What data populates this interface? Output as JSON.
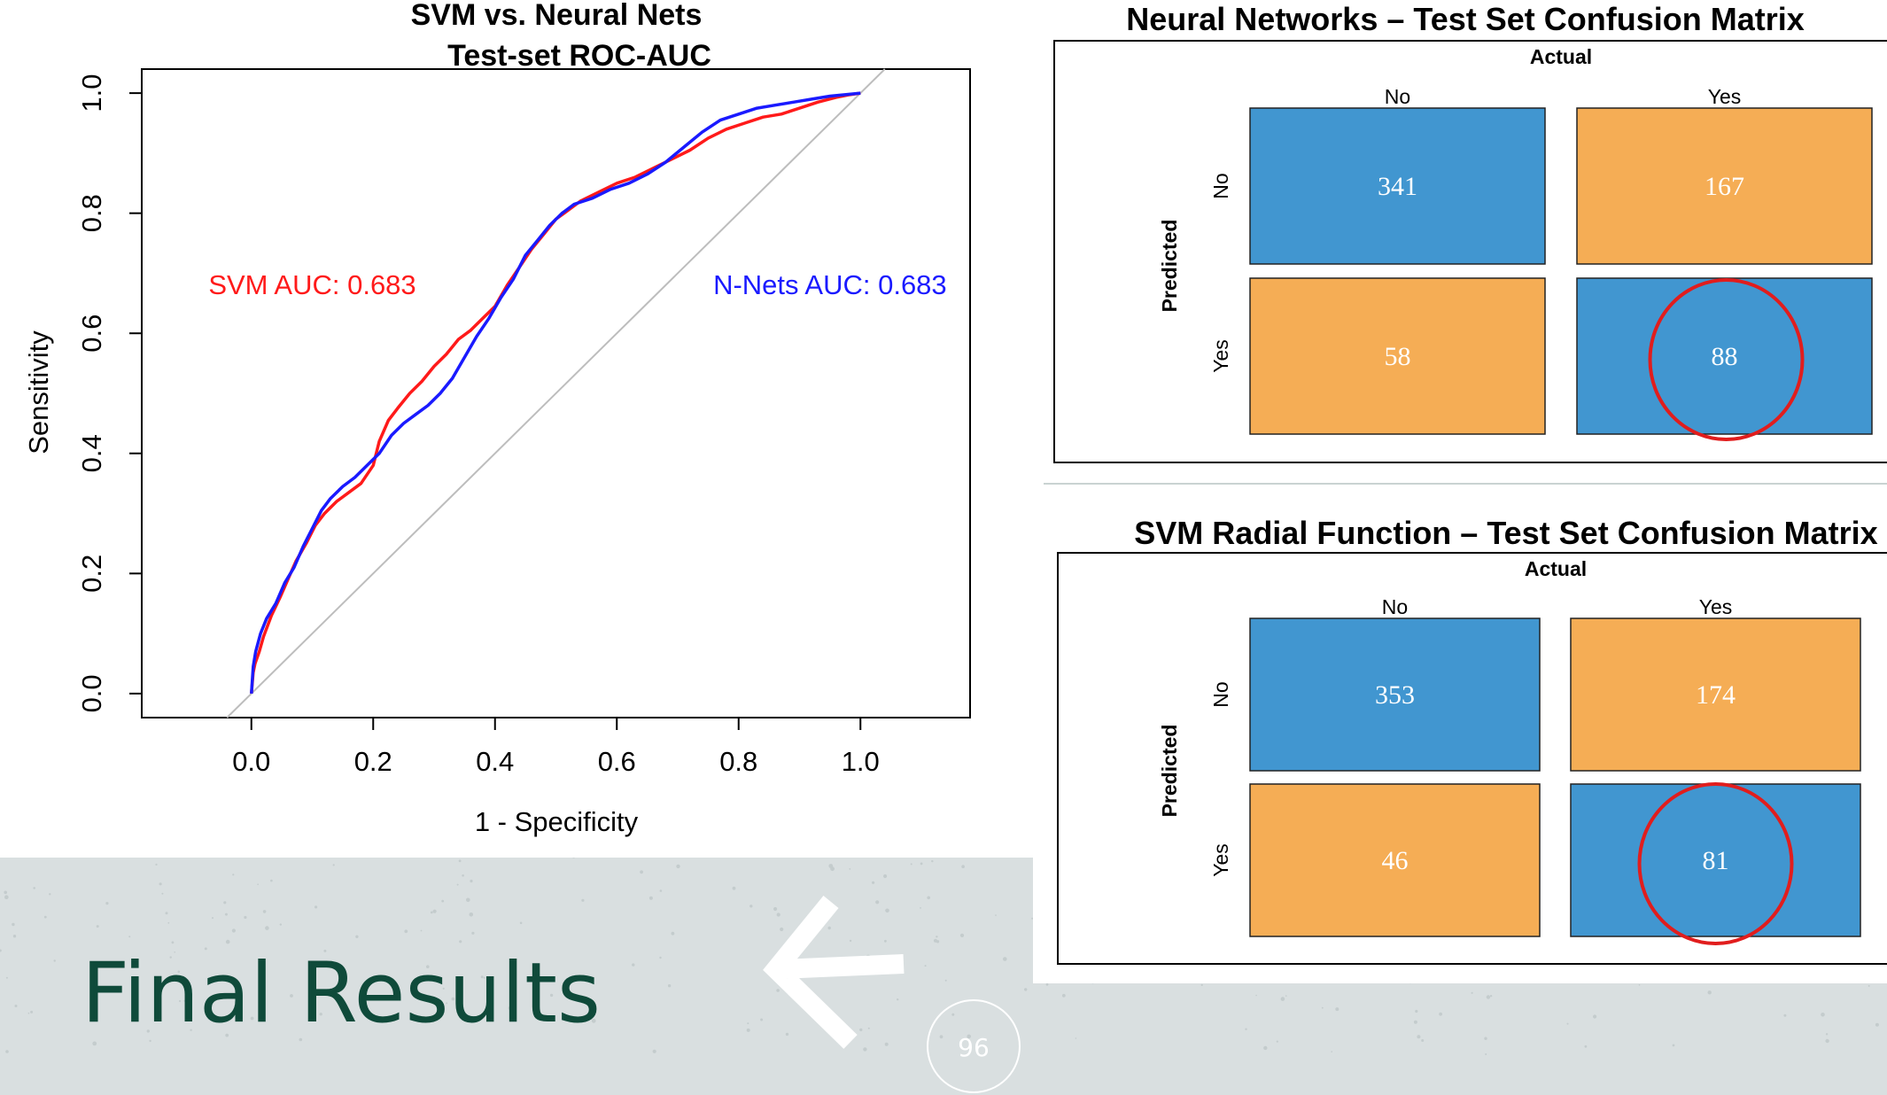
{
  "slide": {
    "title": "Final Results",
    "page_number": "96"
  },
  "chart_data": [
    {
      "type": "line",
      "title": "SVM vs. Neural Nets",
      "subtitle": "Test-set ROC-AUC",
      "xlabel": "1 - Specificity",
      "ylabel": "Sensitivity",
      "xlim": [
        -0.18,
        1.18
      ],
      "ylim": [
        -0.04,
        1.04
      ],
      "xticks": [
        "0.0",
        "0.2",
        "0.4",
        "0.6",
        "0.8",
        "1.0"
      ],
      "yticks": [
        "0.0",
        "0.2",
        "0.4",
        "0.6",
        "0.8",
        "1.0"
      ],
      "grid": false,
      "reference_line": [
        [
          -0.04,
          -0.04
        ],
        [
          1.04,
          1.04
        ]
      ],
      "annotations": [
        {
          "text": "SVM AUC: 0.683",
          "color": "#ff1a1a",
          "x": 0.1,
          "y": 0.665
        },
        {
          "text": "N-Nets AUC: 0.683",
          "color": "#1a1aff",
          "x": 0.95,
          "y": 0.665
        }
      ],
      "series": [
        {
          "color": "#ff1a1a",
          "points": [
            [
              0,
              0
            ],
            [
              0.003,
              0.035
            ],
            [
              0.006,
              0.05
            ],
            [
              0.013,
              0.07
            ],
            [
              0.02,
              0.095
            ],
            [
              0.033,
              0.13
            ],
            [
              0.047,
              0.16
            ],
            [
              0.06,
              0.19
            ],
            [
              0.073,
              0.22
            ],
            [
              0.09,
              0.25
            ],
            [
              0.105,
              0.28
            ],
            [
              0.12,
              0.3
            ],
            [
              0.14,
              0.32
            ],
            [
              0.16,
              0.335
            ],
            [
              0.18,
              0.35
            ],
            [
              0.2,
              0.38
            ],
            [
              0.21,
              0.42
            ],
            [
              0.225,
              0.455
            ],
            [
              0.24,
              0.475
            ],
            [
              0.26,
              0.5
            ],
            [
              0.28,
              0.52
            ],
            [
              0.3,
              0.545
            ],
            [
              0.32,
              0.565
            ],
            [
              0.34,
              0.59
            ],
            [
              0.36,
              0.605
            ],
            [
              0.38,
              0.625
            ],
            [
              0.4,
              0.645
            ],
            [
              0.42,
              0.68
            ],
            [
              0.44,
              0.71
            ],
            [
              0.46,
              0.74
            ],
            [
              0.48,
              0.765
            ],
            [
              0.5,
              0.79
            ],
            [
              0.52,
              0.805
            ],
            [
              0.54,
              0.82
            ],
            [
              0.57,
              0.835
            ],
            [
              0.6,
              0.85
            ],
            [
              0.63,
              0.86
            ],
            [
              0.66,
              0.875
            ],
            [
              0.69,
              0.89
            ],
            [
              0.72,
              0.905
            ],
            [
              0.75,
              0.925
            ],
            [
              0.78,
              0.94
            ],
            [
              0.81,
              0.95
            ],
            [
              0.84,
              0.96
            ],
            [
              0.87,
              0.965
            ],
            [
              0.9,
              0.975
            ],
            [
              0.93,
              0.985
            ],
            [
              0.96,
              0.993
            ],
            [
              0.98,
              0.997
            ],
            [
              1.0,
              1.0
            ]
          ]
        },
        {
          "color": "#1a1aff",
          "points": [
            [
              0,
              0
            ],
            [
              0.003,
              0.045
            ],
            [
              0.007,
              0.07
            ],
            [
              0.015,
              0.1
            ],
            [
              0.025,
              0.125
            ],
            [
              0.04,
              0.15
            ],
            [
              0.055,
              0.185
            ],
            [
              0.07,
              0.21
            ],
            [
              0.085,
              0.245
            ],
            [
              0.1,
              0.275
            ],
            [
              0.115,
              0.305
            ],
            [
              0.13,
              0.325
            ],
            [
              0.15,
              0.345
            ],
            [
              0.17,
              0.36
            ],
            [
              0.19,
              0.38
            ],
            [
              0.21,
              0.4
            ],
            [
              0.23,
              0.43
            ],
            [
              0.25,
              0.45
            ],
            [
              0.27,
              0.465
            ],
            [
              0.29,
              0.48
            ],
            [
              0.31,
              0.5
            ],
            [
              0.33,
              0.525
            ],
            [
              0.35,
              0.56
            ],
            [
              0.37,
              0.595
            ],
            [
              0.39,
              0.625
            ],
            [
              0.41,
              0.66
            ],
            [
              0.43,
              0.69
            ],
            [
              0.45,
              0.73
            ],
            [
              0.47,
              0.755
            ],
            [
              0.49,
              0.78
            ],
            [
              0.51,
              0.8
            ],
            [
              0.53,
              0.815
            ],
            [
              0.56,
              0.825
            ],
            [
              0.59,
              0.84
            ],
            [
              0.62,
              0.85
            ],
            [
              0.65,
              0.865
            ],
            [
              0.68,
              0.885
            ],
            [
              0.71,
              0.91
            ],
            [
              0.74,
              0.935
            ],
            [
              0.77,
              0.955
            ],
            [
              0.8,
              0.965
            ],
            [
              0.83,
              0.975
            ],
            [
              0.86,
              0.98
            ],
            [
              0.89,
              0.985
            ],
            [
              0.92,
              0.99
            ],
            [
              0.95,
              0.995
            ],
            [
              0.98,
              0.998
            ],
            [
              1.0,
              1.0
            ]
          ]
        }
      ]
    },
    {
      "type": "heatmap",
      "title": "Neural Networks –  Test Set Confusion Matrix",
      "col_header": "Actual",
      "row_header": "Predicted",
      "columns": [
        "No",
        "Yes"
      ],
      "rows": [
        "No",
        "Yes"
      ],
      "values": [
        [
          341,
          167
        ],
        [
          58,
          88
        ]
      ],
      "highlight": [
        1,
        1
      ]
    },
    {
      "type": "heatmap",
      "title": "SVM Radial Function –  Test Set Confusion Matrix",
      "col_header": "Actual",
      "row_header": "Predicted",
      "columns": [
        "No",
        "Yes"
      ],
      "rows": [
        "No",
        "Yes"
      ],
      "values": [
        [
          353,
          174
        ],
        [
          46,
          81
        ]
      ],
      "highlight": [
        1,
        1
      ]
    }
  ],
  "colors": {
    "correct": "#4196d0",
    "incorrect": "#f5ad55",
    "highlight": "#e11d1d",
    "title_text": "#0f4a3a"
  }
}
